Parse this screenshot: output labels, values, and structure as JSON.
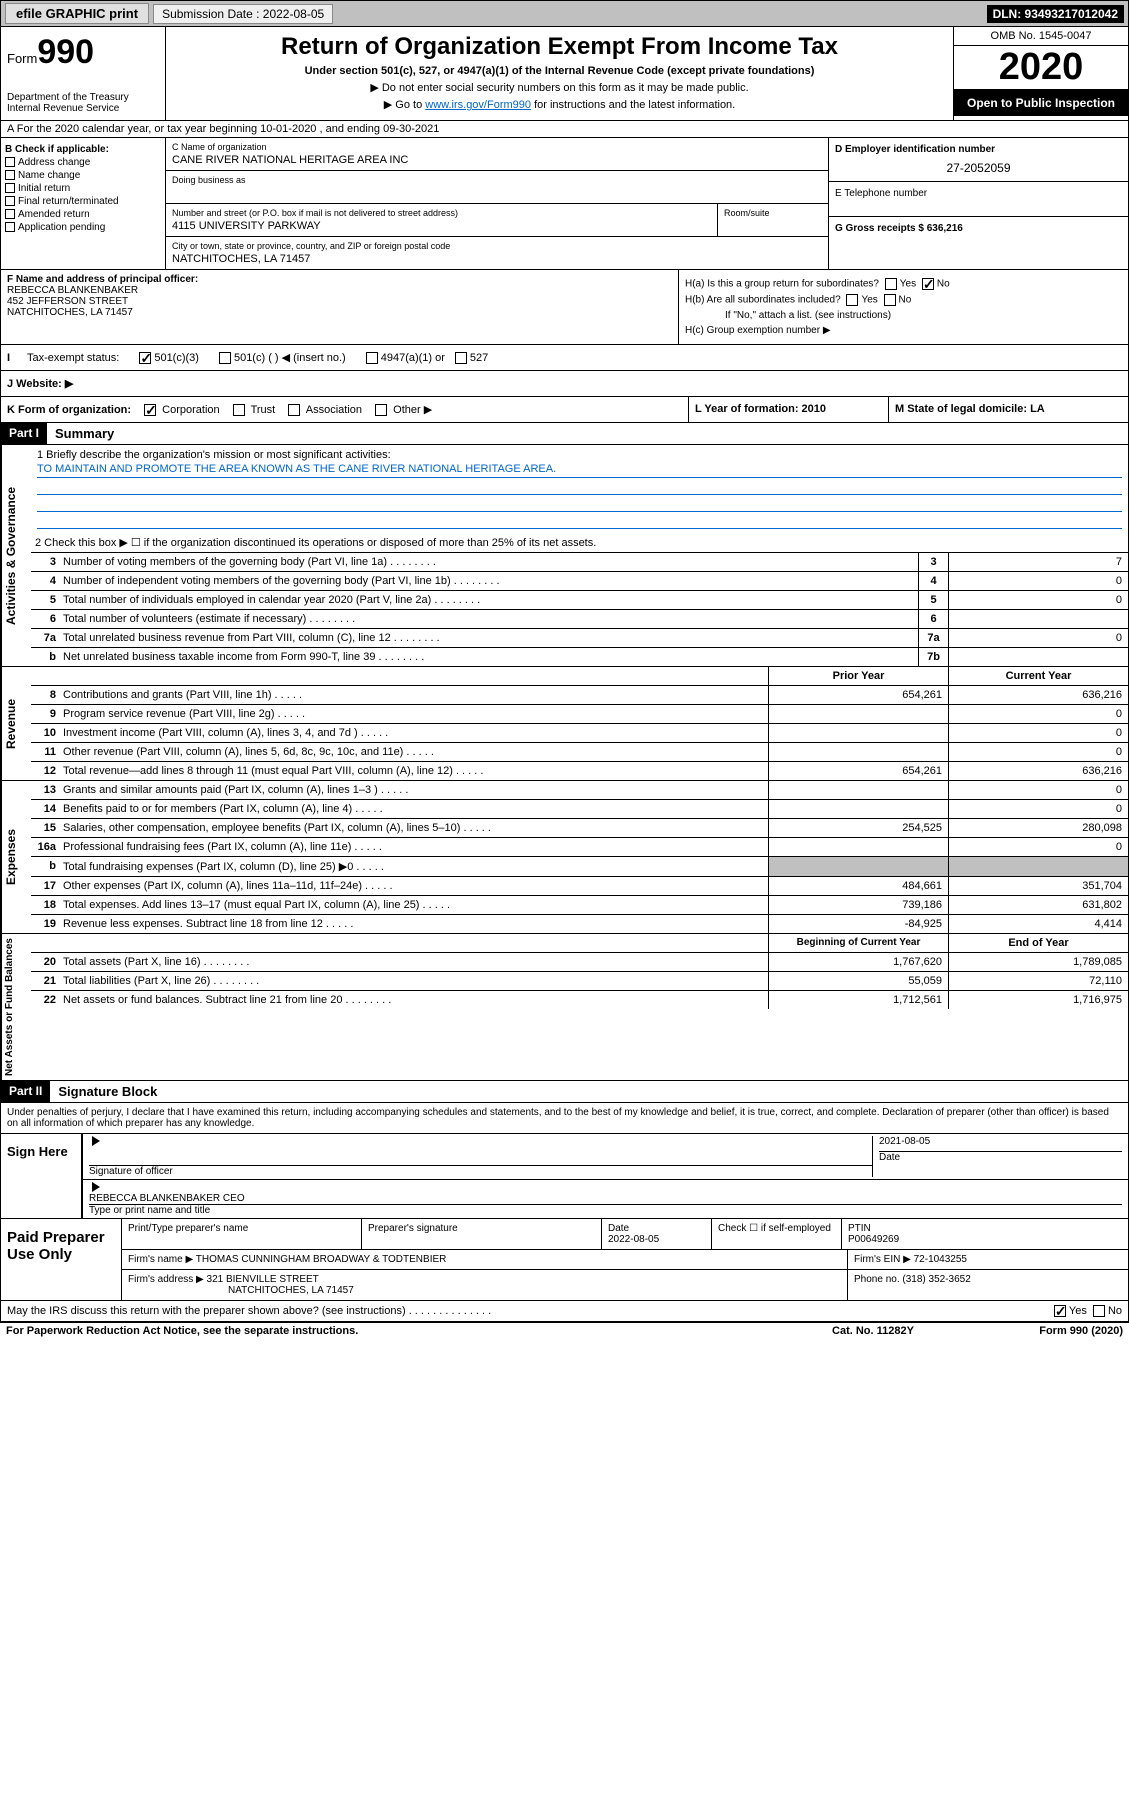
{
  "topbar": {
    "efile": "efile GRAPHIC print",
    "submission": "Submission Date : 2022-08-05",
    "dln": "DLN: 93493217012042"
  },
  "header": {
    "form": "Form",
    "form_num": "990",
    "dept": "Department of the Treasury Internal Revenue Service",
    "title": "Return of Organization Exempt From Income Tax",
    "sub1": "Under section 501(c), 527, or 4947(a)(1) of the Internal Revenue Code (except private foundations)",
    "sub2": "▶ Do not enter social security numbers on this form as it may be made public.",
    "sub3_pre": "▶ Go to ",
    "sub3_link": "www.irs.gov/Form990",
    "sub3_post": " for instructions and the latest information.",
    "omb": "OMB No. 1545-0047",
    "year": "2020",
    "open": "Open to Public Inspection"
  },
  "row_a": "A For the 2020 calendar year, or tax year beginning 10-01-2020   , and ending 09-30-2021",
  "col_b": {
    "hdr": "B Check if applicable:",
    "items": [
      "Address change",
      "Name change",
      "Initial return",
      "Final return/terminated",
      "Amended return",
      "Application pending"
    ]
  },
  "col_c": {
    "c_lbl": "C Name of organization",
    "c_val": "CANE RIVER NATIONAL HERITAGE AREA INC",
    "dba_lbl": "Doing business as",
    "addr_lbl": "Number and street (or P.O. box if mail is not delivered to street address)",
    "addr_val": "4115 UNIVERSITY PARKWAY",
    "room_lbl": "Room/suite",
    "city_lbl": "City or town, state or province, country, and ZIP or foreign postal code",
    "city_val": "NATCHITOCHES, LA  71457"
  },
  "col_d": {
    "d_lbl": "D Employer identification number",
    "d_val": "27-2052059",
    "e_lbl": "E Telephone number",
    "g_lbl": "G Gross receipts $ 636,216"
  },
  "col_f": {
    "lbl": "F  Name and address of principal officer:",
    "name": "REBECCA BLANKENBAKER",
    "addr1": "452 JEFFERSON STREET",
    "addr2": "NATCHITOCHES, LA  71457"
  },
  "col_h": {
    "ha": "H(a)  Is this a group return for subordinates?",
    "hb": "H(b)  Are all subordinates included?",
    "hb_note": "If \"No,\" attach a list. (see instructions)",
    "hc": "H(c)  Group exemption number ▶"
  },
  "row_i": {
    "lbl": "Tax-exempt status:",
    "opts": [
      "501(c)(3)",
      "501(c) (  ) ◀ (insert no.)",
      "4947(a)(1) or",
      "527"
    ]
  },
  "row_j": "J   Website: ▶",
  "row_k": {
    "k": "K Form of organization:",
    "k_opts": [
      "Corporation",
      "Trust",
      "Association",
      "Other ▶"
    ],
    "l": "L Year of formation: 2010",
    "m": "M State of legal domicile: LA"
  },
  "part1": {
    "hdr": "Part I",
    "title": "Summary"
  },
  "mission": {
    "q1": "1  Briefly describe the organization's mission or most significant activities:",
    "txt": "TO MAINTAIN AND PROMOTE THE AREA KNOWN AS THE CANE RIVER NATIONAL HERITAGE AREA.",
    "q2": "2  Check this box ▶ ☐  if the organization discontinued its operations or disposed of more than 25% of its net assets."
  },
  "gov_rows": [
    {
      "n": "3",
      "t": "Number of voting members of the governing body (Part VI, line 1a)",
      "b": "3",
      "v": "7"
    },
    {
      "n": "4",
      "t": "Number of independent voting members of the governing body (Part VI, line 1b)",
      "b": "4",
      "v": "0"
    },
    {
      "n": "5",
      "t": "Total number of individuals employed in calendar year 2020 (Part V, line 2a)",
      "b": "5",
      "v": "0"
    },
    {
      "n": "6",
      "t": "Total number of volunteers (estimate if necessary)",
      "b": "6",
      "v": ""
    },
    {
      "n": "7a",
      "t": "Total unrelated business revenue from Part VIII, column (C), line 12",
      "b": "7a",
      "v": "0"
    },
    {
      "n": "b",
      "t": "Net unrelated business taxable income from Form 990-T, line 39",
      "b": "7b",
      "v": ""
    }
  ],
  "rev_hdr": {
    "py": "Prior Year",
    "cy": "Current Year"
  },
  "rev_rows": [
    {
      "n": "8",
      "t": "Contributions and grants (Part VIII, line 1h)",
      "py": "654,261",
      "cy": "636,216"
    },
    {
      "n": "9",
      "t": "Program service revenue (Part VIII, line 2g)",
      "py": "",
      "cy": "0"
    },
    {
      "n": "10",
      "t": "Investment income (Part VIII, column (A), lines 3, 4, and 7d )",
      "py": "",
      "cy": "0"
    },
    {
      "n": "11",
      "t": "Other revenue (Part VIII, column (A), lines 5, 6d, 8c, 9c, 10c, and 11e)",
      "py": "",
      "cy": "0"
    },
    {
      "n": "12",
      "t": "Total revenue—add lines 8 through 11 (must equal Part VIII, column (A), line 12)",
      "py": "654,261",
      "cy": "636,216"
    }
  ],
  "exp_rows": [
    {
      "n": "13",
      "t": "Grants and similar amounts paid (Part IX, column (A), lines 1–3 )",
      "py": "",
      "cy": "0"
    },
    {
      "n": "14",
      "t": "Benefits paid to or for members (Part IX, column (A), line 4)",
      "py": "",
      "cy": "0"
    },
    {
      "n": "15",
      "t": "Salaries, other compensation, employee benefits (Part IX, column (A), lines 5–10)",
      "py": "254,525",
      "cy": "280,098"
    },
    {
      "n": "16a",
      "t": "Professional fundraising fees (Part IX, column (A), line 11e)",
      "py": "",
      "cy": "0"
    },
    {
      "n": "b",
      "t": "Total fundraising expenses (Part IX, column (D), line 25) ▶0",
      "py": "grey",
      "cy": "grey"
    },
    {
      "n": "17",
      "t": "Other expenses (Part IX, column (A), lines 11a–11d, 11f–24e)",
      "py": "484,661",
      "cy": "351,704"
    },
    {
      "n": "18",
      "t": "Total expenses. Add lines 13–17 (must equal Part IX, column (A), line 25)",
      "py": "739,186",
      "cy": "631,802"
    },
    {
      "n": "19",
      "t": "Revenue less expenses. Subtract line 18 from line 12",
      "py": "-84,925",
      "cy": "4,414"
    }
  ],
  "na_hdr": {
    "py": "Beginning of Current Year",
    "cy": "End of Year"
  },
  "na_rows": [
    {
      "n": "20",
      "t": "Total assets (Part X, line 16)",
      "py": "1,767,620",
      "cy": "1,789,085"
    },
    {
      "n": "21",
      "t": "Total liabilities (Part X, line 26)",
      "py": "55,059",
      "cy": "72,110"
    },
    {
      "n": "22",
      "t": "Net assets or fund balances. Subtract line 21 from line 20",
      "py": "1,712,561",
      "cy": "1,716,975"
    }
  ],
  "vside": {
    "gov": "Activities & Governance",
    "rev": "Revenue",
    "exp": "Expenses",
    "na": "Net Assets or Fund Balances"
  },
  "part2": {
    "hdr": "Part II",
    "title": "Signature Block"
  },
  "perjury": "Under penalties of perjury, I declare that I have examined this return, including accompanying schedules and statements, and to the best of my knowledge and belief, it is true, correct, and complete. Declaration of preparer (other than officer) is based on all information of which preparer has any knowledge.",
  "sign": {
    "here": "Sign Here",
    "sig_lbl": "Signature of officer",
    "date": "2021-08-05",
    "date_lbl": "Date",
    "name": "REBECCA BLANKENBAKER  CEO",
    "name_lbl": "Type or print name and title"
  },
  "paid": {
    "title": "Paid Preparer Use Only",
    "h1": "Print/Type preparer's name",
    "h2": "Preparer's signature",
    "h3_lbl": "Date",
    "h3": "2022-08-05",
    "h4": "Check ☐ if self-employed",
    "h5_lbl": "PTIN",
    "h5": "P00649269",
    "firm_lbl": "Firm's name     ▶",
    "firm": "THOMAS CUNNINGHAM BROADWAY & TODTENBIER",
    "ein_lbl": "Firm's EIN ▶",
    "ein": "72-1043255",
    "addr_lbl": "Firm's address ▶",
    "addr1": "321 BIENVILLE STREET",
    "addr2": "NATCHITOCHES, LA  71457",
    "phone_lbl": "Phone no.",
    "phone": "(318) 352-3652"
  },
  "footer": {
    "discuss": "May the IRS discuss this return with the preparer shown above? (see instructions)",
    "paperwork": "For Paperwork Reduction Act Notice, see the separate instructions.",
    "cat": "Cat. No. 11282Y",
    "form": "Form 990 (2020)"
  }
}
